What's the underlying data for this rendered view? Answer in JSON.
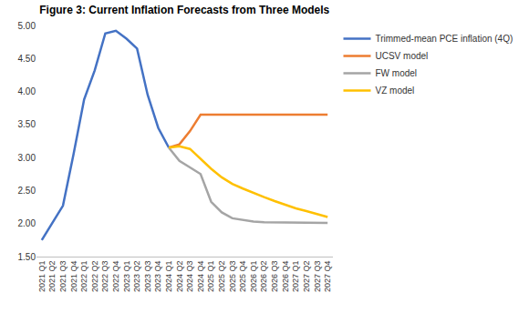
{
  "chart_data": {
    "type": "line",
    "title": "Figure 3: Current Inflation Forecasts from Three Models",
    "categories": [
      "2021 Q1",
      "2021 Q2",
      "2021 Q3",
      "2021 Q4",
      "2022 Q1",
      "2022 Q2",
      "2022 Q3",
      "2022 Q4",
      "2023 Q1",
      "2023 Q2",
      "2023 Q3",
      "2023 Q4",
      "2024 Q1",
      "2024 Q2",
      "2024 Q3",
      "2024 Q4",
      "2025 Q1",
      "2025 Q2",
      "2025 Q3",
      "2025 Q4",
      "2026 Q1",
      "2026 Q2",
      "2026 Q3",
      "2026 Q4",
      "2027 Q1",
      "2027 Q2",
      "2027 Q3",
      "2027 Q4"
    ],
    "series": [
      {
        "name": "Trimmed-mean PCE inflation (4Q)",
        "color": "#4472c4",
        "values": [
          1.75,
          2.02,
          2.27,
          3.05,
          3.88,
          4.32,
          4.88,
          4.92,
          4.8,
          4.65,
          3.95,
          3.45,
          3.15,
          null,
          null,
          null,
          null,
          null,
          null,
          null,
          null,
          null,
          null,
          null,
          null,
          null,
          null,
          null
        ]
      },
      {
        "name": "UCSV model",
        "color": "#ed7d31",
        "values": [
          null,
          null,
          null,
          null,
          null,
          null,
          null,
          null,
          null,
          null,
          null,
          null,
          3.15,
          3.2,
          3.4,
          3.65,
          3.65,
          3.65,
          3.65,
          3.65,
          3.65,
          3.65,
          3.65,
          3.65,
          3.65,
          3.65,
          3.65,
          3.65
        ]
      },
      {
        "name": "FW model",
        "color": "#a5a5a5",
        "values": [
          null,
          null,
          null,
          null,
          null,
          null,
          null,
          null,
          null,
          null,
          null,
          null,
          3.15,
          2.95,
          2.85,
          2.75,
          2.33,
          2.17,
          2.08,
          2.05,
          2.03,
          2.02,
          2.02,
          2.01,
          2.01,
          2.01,
          2.01,
          2.01
        ]
      },
      {
        "name": "VZ model",
        "color": "#ffc000",
        "values": [
          null,
          null,
          null,
          null,
          null,
          null,
          null,
          null,
          null,
          null,
          null,
          null,
          3.15,
          3.17,
          3.13,
          2.98,
          2.83,
          2.7,
          2.6,
          2.53,
          2.46,
          2.4,
          2.34,
          2.28,
          2.23,
          2.19,
          2.14,
          2.1
        ]
      }
    ],
    "ylim": [
      1.5,
      5.0
    ],
    "yticks": [
      {
        "value": 1.5,
        "label": "1.50"
      },
      {
        "value": 2.0,
        "label": "2.00"
      },
      {
        "value": 2.5,
        "label": "2.50"
      },
      {
        "value": 3.0,
        "label": "3.00"
      },
      {
        "value": 3.5,
        "label": "3.50"
      },
      {
        "value": 4.0,
        "label": "4.00"
      },
      {
        "value": 4.5,
        "label": "4.50"
      },
      {
        "value": 5.0,
        "label": "5.00"
      }
    ],
    "grid": false,
    "legend": "right"
  }
}
